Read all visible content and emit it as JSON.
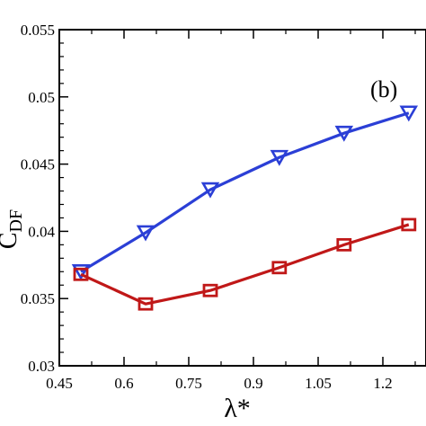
{
  "chart_data": {
    "type": "line",
    "panel_label": "(b)",
    "xlabel": "λ*",
    "ylabel_main": "C",
    "ylabel_sub": "DF",
    "xlim": [
      0.45,
      1.3
    ],
    "ylim": [
      0.03,
      0.055
    ],
    "xticks": [
      0.45,
      0.6,
      0.75,
      0.9,
      1.05,
      1.2
    ],
    "xtick_labels": [
      "0.45",
      "0.6",
      "0.75",
      "0.9",
      "1.05",
      "1.2"
    ],
    "yticks": [
      0.03,
      0.035,
      0.04,
      0.045,
      0.05,
      0.055
    ],
    "ytick_labels": [
      "0.03",
      "0.035",
      "0.04",
      "0.045",
      "0.05",
      "0.055"
    ],
    "grid": false,
    "legend": "none",
    "series": [
      {
        "color": "#2b3fd6",
        "marker": "triangle-down",
        "x": [
          0.5,
          0.65,
          0.8,
          0.96,
          1.11,
          1.26
        ],
        "y": [
          0.037,
          0.0399,
          0.0431,
          0.0455,
          0.0473,
          0.0488
        ]
      },
      {
        "color": "#c01818",
        "marker": "square",
        "x": [
          0.5,
          0.65,
          0.8,
          0.96,
          1.11,
          1.26
        ],
        "y": [
          0.0368,
          0.0346,
          0.0356,
          0.0373,
          0.039,
          0.0405
        ]
      }
    ]
  }
}
